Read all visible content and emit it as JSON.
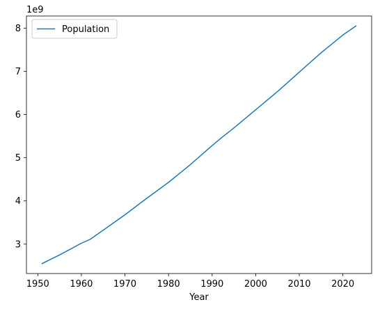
{
  "colors": {
    "series": "#1f77b4",
    "axis": "#000000",
    "legend_border": "#cccccc",
    "background": "#ffffff"
  },
  "chart_data": {
    "type": "line",
    "title": "",
    "xlabel": "Year",
    "ylabel": "",
    "y_offset_label": "1e9",
    "xlim": [
      1947.4,
      2026.6
    ],
    "ylim": [
      2.32,
      8.28
    ],
    "grid": false,
    "legend_position": "top-left",
    "x_ticks": [
      1950,
      1960,
      1970,
      1980,
      1990,
      2000,
      2010,
      2020
    ],
    "x_tick_labels": [
      "1950",
      "1960",
      "1970",
      "1980",
      "1990",
      "2000",
      "2010",
      "2020"
    ],
    "y_ticks": [
      3,
      4,
      5,
      6,
      7,
      8
    ],
    "y_tick_labels": [
      "3",
      "4",
      "5",
      "6",
      "7",
      "8"
    ],
    "series": [
      {
        "name": "Population",
        "x": [
          1951,
          1955,
          1960,
          1962,
          1965,
          1970,
          1975,
          1980,
          1985,
          1990,
          1992,
          1995,
          2000,
          2005,
          2010,
          2015,
          2020,
          2023
        ],
        "y": [
          2.55,
          2.75,
          3.02,
          3.11,
          3.32,
          3.68,
          4.06,
          4.43,
          4.84,
          5.28,
          5.45,
          5.69,
          6.11,
          6.53,
          6.98,
          7.43,
          7.84,
          8.05
        ]
      }
    ]
  }
}
